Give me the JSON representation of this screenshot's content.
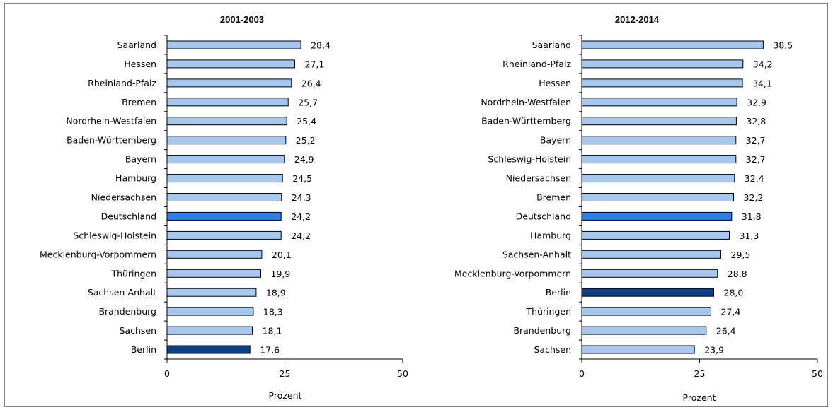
{
  "chart_data": [
    {
      "type": "bar",
      "orientation": "horizontal",
      "title": "2001-2003",
      "xlabel": "Prozent",
      "xlim": [
        0,
        50
      ],
      "xticks": [
        "0",
        "25",
        "50"
      ],
      "grid": false,
      "colors": {
        "default": "#a6c8ee",
        "Deutschland": "#2e7fe0",
        "Berlin": "#0e3f86"
      },
      "categories": [
        "Saarland",
        "Hessen",
        "Rheinland-Pfalz",
        "Bremen",
        "Nordrhein-Westfalen",
        "Baden-Württemberg",
        "Bayern",
        "Hamburg",
        "Niedersachsen",
        "Deutschland",
        "Schleswig-Holstein",
        "Mecklenburg-Vorpommern",
        "Thüringen",
        "Sachsen-Anhalt",
        "Brandenburg",
        "Sachsen",
        "Berlin"
      ],
      "values": [
        28.4,
        27.1,
        26.4,
        25.7,
        25.4,
        25.2,
        24.9,
        24.5,
        24.3,
        24.2,
        24.2,
        20.1,
        19.9,
        18.9,
        18.3,
        18.1,
        17.6
      ],
      "value_labels": [
        "28,4",
        "27,1",
        "26,4",
        "25,7",
        "25,4",
        "25,2",
        "24,9",
        "24,5",
        "24,3",
        "24,2",
        "24,2",
        "20,1",
        "19,9",
        "18,9",
        "18,3",
        "18,1",
        "17,6"
      ]
    },
    {
      "type": "bar",
      "orientation": "horizontal",
      "title": "2012-2014",
      "xlabel": "Prozent",
      "xlim": [
        0,
        50
      ],
      "xticks": [
        "0",
        "25",
        "50"
      ],
      "grid": false,
      "colors": {
        "default": "#a6c8ee",
        "Deutschland": "#2e7fe0",
        "Berlin": "#0e3f86"
      },
      "categories": [
        "Saarland",
        "Rheinland-Pfalz",
        "Hessen",
        "Nordrhein-Westfalen",
        "Baden-Württemberg",
        "Bayern",
        "Schleswig-Holstein",
        "Niedersachsen",
        "Bremen",
        "Deutschland",
        "Hamburg",
        "Sachsen-Anhalt",
        "Mecklenburg-Vorpommern",
        "Berlin",
        "Thüringen",
        "Brandenburg",
        "Sachsen"
      ],
      "values": [
        38.5,
        34.2,
        34.1,
        32.9,
        32.8,
        32.7,
        32.7,
        32.4,
        32.2,
        31.8,
        31.3,
        29.5,
        28.8,
        28.0,
        27.4,
        26.4,
        23.9
      ],
      "value_labels": [
        "38,5",
        "34,2",
        "34,1",
        "32,9",
        "32,8",
        "32,7",
        "32,7",
        "32,4",
        "32,2",
        "31,8",
        "31,3",
        "29,5",
        "28,8",
        "28,0",
        "27,4",
        "26,4",
        "23,9"
      ]
    }
  ]
}
